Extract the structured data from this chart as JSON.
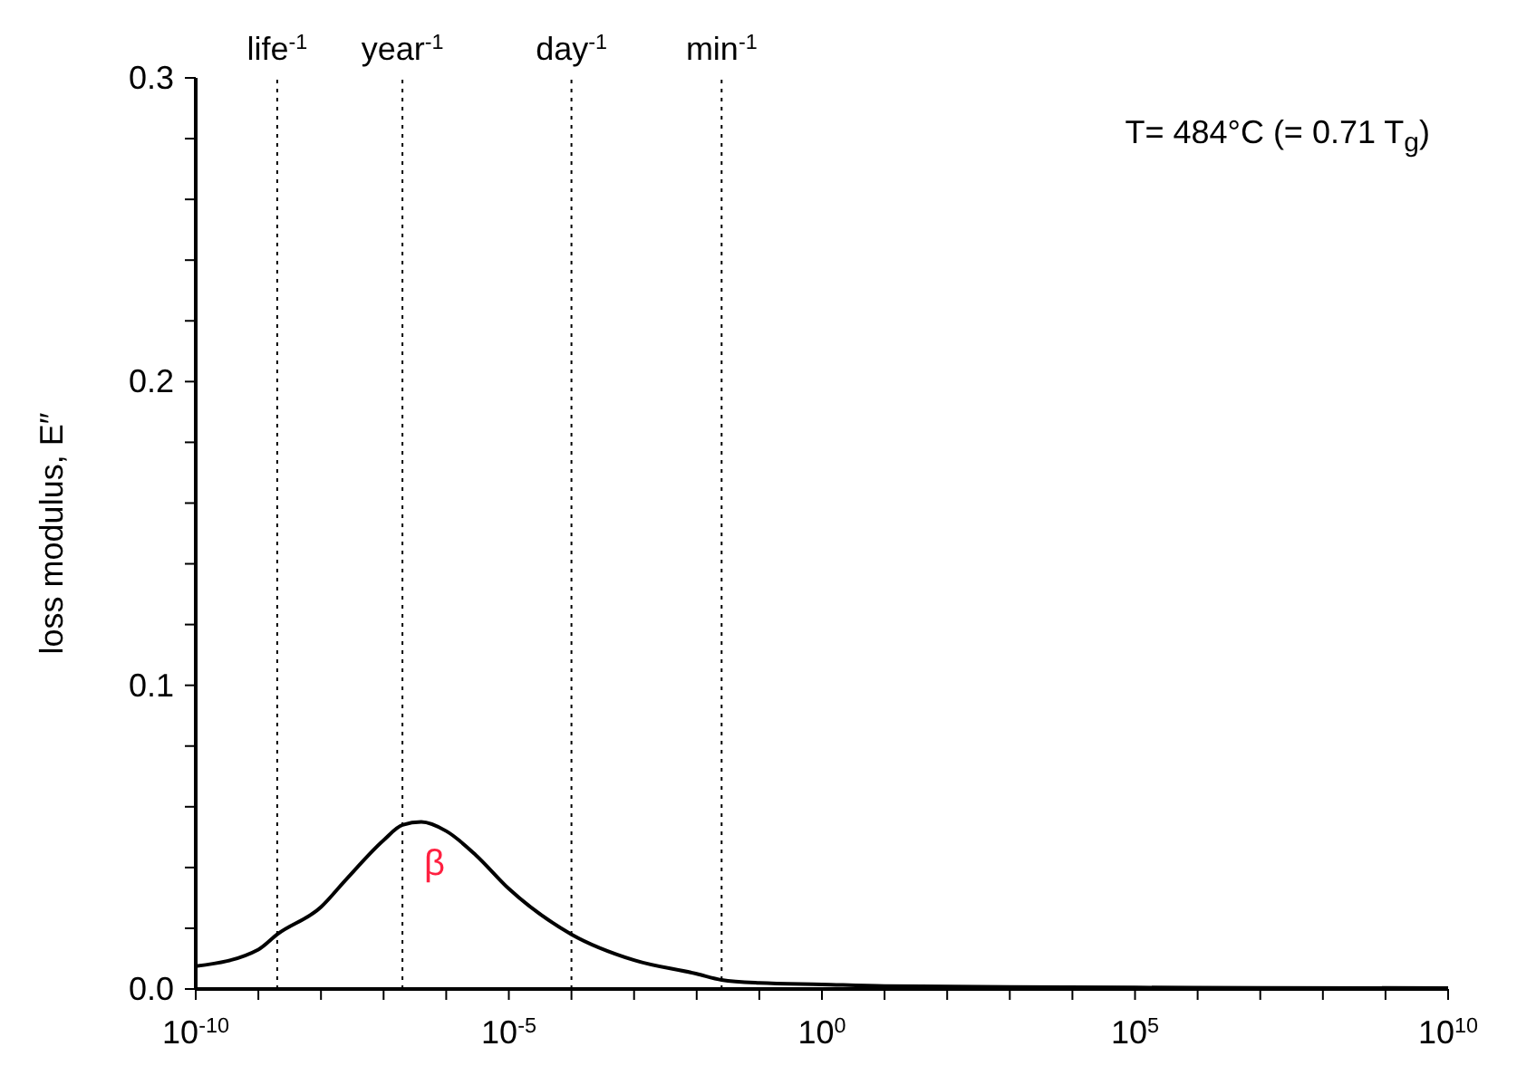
{
  "chart_data": {
    "type": "line",
    "ylabel": "loss modulus, E″",
    "log": "x",
    "x": [
      1e-10,
      1e-09,
      2e-09,
      1e-08,
      2.5e-08,
      1e-07,
      2e-07,
      4e-07,
      1e-06,
      3e-06,
      1e-05,
      0.0001,
      0.001,
      0.01,
      0.025,
      0.1,
      1,
      10,
      1000,
      100000.0,
      10000000.0,
      10000000000.0
    ],
    "series": [
      {
        "color": "#000000",
        "values": [
          0.0075,
          0.013,
          0.018,
          0.027,
          0.036,
          0.049,
          0.054,
          0.055,
          0.052,
          0.044,
          0.033,
          0.018,
          0.0095,
          0.005,
          0.003,
          0.002,
          0.0015,
          0.001,
          0.0007,
          0.0005,
          0.0004,
          0.0003
        ]
      }
    ],
    "xlim": [
      1e-10,
      10000000000.0
    ],
    "xticks": [
      {
        "value": 1e-10,
        "label": "10$^{-10}$"
      },
      {
        "value": 1e-09,
        "label": null
      },
      {
        "value": 1e-08,
        "label": null
      },
      {
        "value": 1e-07,
        "label": null
      },
      {
        "value": 1e-06,
        "label": null
      },
      {
        "value": 1e-05,
        "label": "10$^{-5}$"
      },
      {
        "value": 0.0001,
        "label": null
      },
      {
        "value": 0.001,
        "label": null
      },
      {
        "value": 0.01,
        "label": null
      },
      {
        "value": 0.1,
        "label": null
      },
      {
        "value": 1,
        "label": "10$^{0}$"
      },
      {
        "value": 10,
        "label": null
      },
      {
        "value": 100,
        "label": null
      },
      {
        "value": 1000,
        "label": null
      },
      {
        "value": 10000,
        "label": null
      },
      {
        "value": 100000.0,
        "label": "10$^{5}$"
      },
      {
        "value": 1000000.0,
        "label": null
      },
      {
        "value": 10000000.0,
        "label": null
      },
      {
        "value": 100000000.0,
        "label": null
      },
      {
        "value": 1000000000.0,
        "label": null
      },
      {
        "value": 10000000000.0,
        "label": "10$^{10}$"
      }
    ],
    "ylim": [
      0,
      0.3
    ],
    "yticks": [
      {
        "value": 0,
        "label": "0.0"
      },
      {
        "value": 0.02,
        "label": null
      },
      {
        "value": 0.04,
        "label": null
      },
      {
        "value": 0.06,
        "label": null
      },
      {
        "value": 0.08,
        "label": null
      },
      {
        "value": 0.1,
        "label": "0.1"
      },
      {
        "value": 0.12,
        "label": null
      },
      {
        "value": 0.14,
        "label": null
      },
      {
        "value": 0.16,
        "label": null
      },
      {
        "value": 0.18,
        "label": null
      },
      {
        "value": 0.2,
        "label": "0.2"
      },
      {
        "value": 0.22,
        "label": null
      },
      {
        "value": 0.24,
        "label": null
      },
      {
        "value": 0.26,
        "label": null
      },
      {
        "value": 0.28,
        "label": null
      },
      {
        "value": 0.3,
        "label": "0.3"
      }
    ],
    "ref_lines": [
      {
        "axis": "x",
        "value": 2e-09,
        "label": "life$^{-1}$",
        "line_style": "dotted"
      },
      {
        "axis": "x",
        "value": 2e-07,
        "label": "year$^{-1}$",
        "line_style": "dotted"
      },
      {
        "axis": "x",
        "value": 0.0001,
        "label": "day$^{-1}$",
        "line_style": "dotted"
      },
      {
        "axis": "x",
        "value": 0.025,
        "label": "min$^{-1}$",
        "line_style": "dotted"
      }
    ],
    "annotations": [
      "β",
      "T= 484°C (= 0.71 T$_{g}$)"
    ]
  }
}
